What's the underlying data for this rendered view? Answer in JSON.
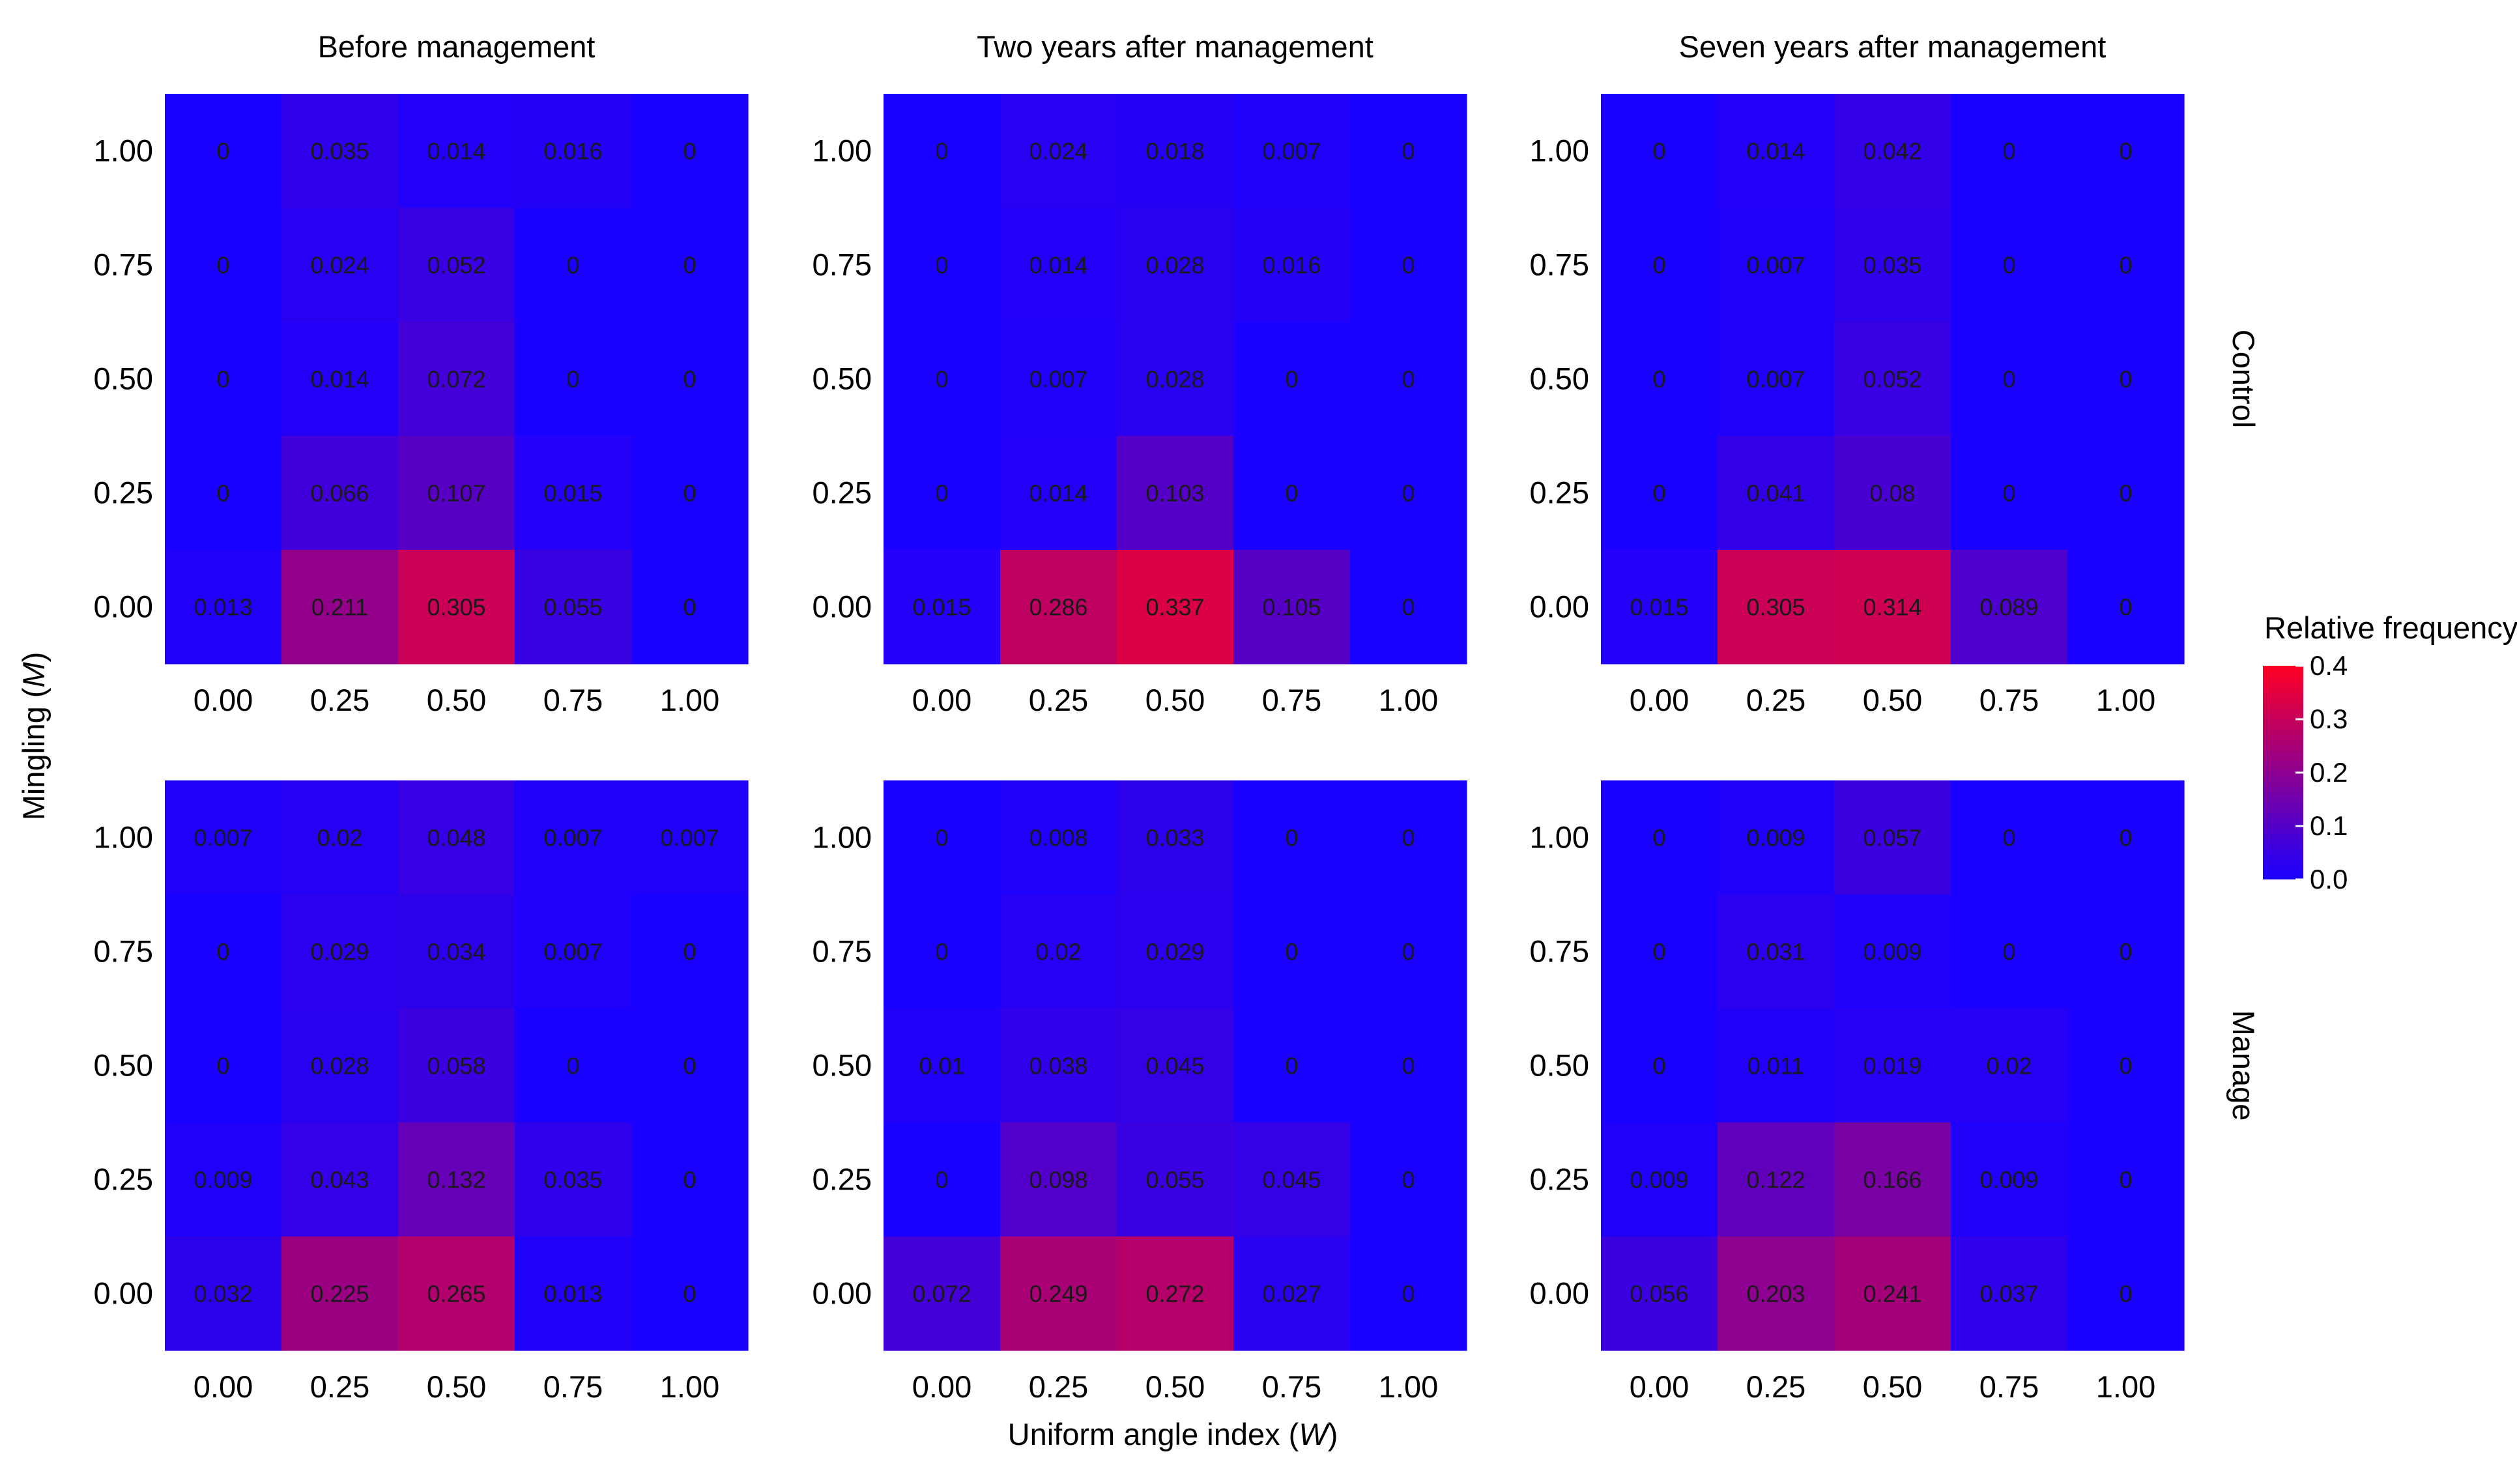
{
  "chart_data": {
    "type": "heatmap",
    "x_label": "Uniform angle index (",
    "x_label_var": "W",
    "x_label_end": ")",
    "y_label": "Mingling (",
    "y_label_var": "M",
    "y_label_end": ")",
    "x_ticks": [
      "0.00",
      "0.25",
      "0.50",
      "0.75",
      "1.00"
    ],
    "y_ticks": [
      "0.00",
      "0.25",
      "0.50",
      "0.75",
      "1.00"
    ],
    "col_titles": [
      "Before management",
      "Two years after management",
      "Seven years after management"
    ],
    "row_titles": [
      "Control",
      "Manage"
    ],
    "legend": {
      "title": "Relative frequency",
      "ticks": [
        "0.4",
        "0.3",
        "0.2",
        "0.1",
        "0.0"
      ],
      "tick_values": [
        0.4,
        0.3,
        0.2,
        0.1,
        0.0
      ],
      "min": 0.0,
      "max": 0.4,
      "low_color": "#1a00ff",
      "high_color": "#ff0022"
    },
    "panels": [
      {
        "row": "Control",
        "col": "Before management",
        "values": [
          [
            "0",
            "0.035",
            "0.014",
            "0.016",
            "0"
          ],
          [
            "0",
            "0.024",
            "0.052",
            "0",
            "0"
          ],
          [
            "0",
            "0.014",
            "0.072",
            "0",
            "0"
          ],
          [
            "0",
            "0.066",
            "0.107",
            "0.015",
            "0"
          ],
          [
            "0.013",
            "0.211",
            "0.305",
            "0.055",
            "0"
          ]
        ]
      },
      {
        "row": "Control",
        "col": "Two years after management",
        "values": [
          [
            "0",
            "0.024",
            "0.018",
            "0.007",
            "0"
          ],
          [
            "0",
            "0.014",
            "0.028",
            "0.016",
            "0"
          ],
          [
            "0",
            "0.007",
            "0.028",
            "0",
            "0"
          ],
          [
            "0",
            "0.014",
            "0.103",
            "0",
            "0"
          ],
          [
            "0.015",
            "0.286",
            "0.337",
            "0.105",
            "0"
          ]
        ]
      },
      {
        "row": "Control",
        "col": "Seven years after management",
        "values": [
          [
            "0",
            "0.014",
            "0.042",
            "0",
            "0"
          ],
          [
            "0",
            "0.007",
            "0.035",
            "0",
            "0"
          ],
          [
            "0",
            "0.007",
            "0.052",
            "0",
            "0"
          ],
          [
            "0",
            "0.041",
            "0.08",
            "0",
            "0"
          ],
          [
            "0.015",
            "0.305",
            "0.314",
            "0.089",
            "0"
          ]
        ]
      },
      {
        "row": "Manage",
        "col": "Before management",
        "values": [
          [
            "0.007",
            "0.02",
            "0.048",
            "0.007",
            "0.007"
          ],
          [
            "0",
            "0.029",
            "0.034",
            "0.007",
            "0"
          ],
          [
            "0",
            "0.028",
            "0.058",
            "0",
            "0"
          ],
          [
            "0.009",
            "0.043",
            "0.132",
            "0.035",
            "0"
          ],
          [
            "0.032",
            "0.225",
            "0.265",
            "0.013",
            "0"
          ]
        ]
      },
      {
        "row": "Manage",
        "col": "Two years after management",
        "values": [
          [
            "0",
            "0.008",
            "0.033",
            "0",
            "0"
          ],
          [
            "0",
            "0.02",
            "0.029",
            "0",
            "0"
          ],
          [
            "0.01",
            "0.038",
            "0.045",
            "0",
            "0"
          ],
          [
            "0",
            "0.098",
            "0.055",
            "0.045",
            "0"
          ],
          [
            "0.072",
            "0.249",
            "0.272",
            "0.027",
            "0"
          ]
        ]
      },
      {
        "row": "Manage",
        "col": "Seven years after management",
        "values": [
          [
            "0",
            "0.009",
            "0.057",
            "0",
            "0"
          ],
          [
            "0",
            "0.031",
            "0.009",
            "0",
            "0"
          ],
          [
            "0",
            "0.011",
            "0.019",
            "0.02",
            "0"
          ],
          [
            "0.009",
            "0.122",
            "0.166",
            "0.009",
            "0"
          ],
          [
            "0.056",
            "0.203",
            "0.241",
            "0.037",
            "0"
          ]
        ]
      }
    ]
  }
}
